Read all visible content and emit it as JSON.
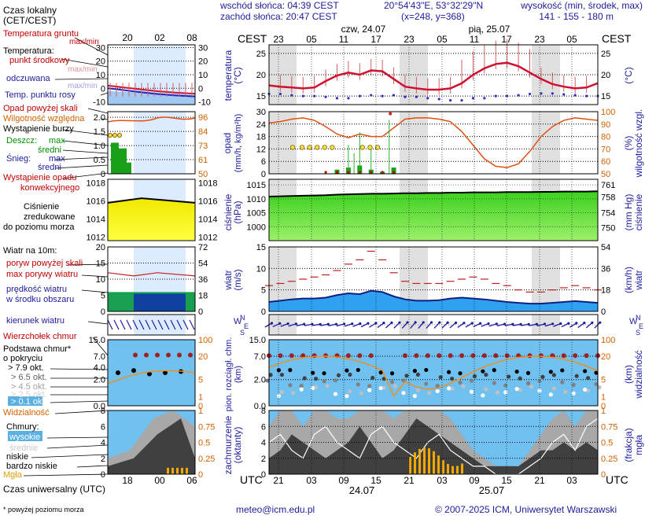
{
  "header": {
    "sunrise": "wschód słońca: 04:39 CEST",
    "sunset": "zachód słońca: 20:47 CEST",
    "coords": "20°54'43\"E, 53°32'29\"N",
    "grid": "(x=248,  y=368)",
    "altitude_label": "wysokość (min, środek, max)",
    "altitude_values": "141 - 155 - 180 m",
    "day1": "czw, 24.07",
    "day2": "pią, 25.07",
    "cest": "CEST",
    "top_hours": [
      "23",
      "05",
      "11",
      "17",
      "23",
      "05",
      "11",
      "17",
      "23",
      "05"
    ],
    "bottom_hours": [
      "21",
      "03",
      "09",
      "15",
      "21",
      "03",
      "09",
      "15",
      "21",
      "03"
    ],
    "bottom_date1": "24.07",
    "bottom_date2": "25.07",
    "utc": "UTC"
  },
  "legend": {
    "local_time": "Czas lokalny",
    "local_time2": "(CET/CEST)",
    "local_hours": [
      "20",
      "02",
      "08"
    ],
    "utc_hours": [
      "18",
      "00",
      "06"
    ],
    "utc_label": "Czas uniwersalny (UTC)",
    "temp_ground": "Temperatura gruntu",
    "temp_ground_sub": "max/min",
    "temperature": "Temperatura:",
    "mid_point": "punkt środkowy",
    "max_min": "max/min",
    "perceived": "odczuwana",
    "max_min2": "max/min",
    "dew_point": "Temp. punktu rosy",
    "rain_over_scale": "Opad powyżej skali",
    "humidity": "Wilgotność względna",
    "storm": "Wystąpienie burzy",
    "rain": "Deszcz:",
    "max": "max",
    "mid": "średni",
    "snow": "Śnieg:",
    "max2": "max",
    "mid2": "średni",
    "conv": "Wystąpienie opadu",
    "conv2": "konwekcyjnego",
    "pressure1": "Ciśnienie",
    "pressure2": "zredukowane",
    "pressure3": "do poziomu morza",
    "wind10": "Wiatr na 10m:",
    "gust_over": "poryw powyżej skali",
    "gust_max": "max porywy wiatru",
    "wind_speed": "prędkość wiatru",
    "wind_area": "w środku obszaru",
    "wind_dir": "kierunek wiatru",
    "cb_top": "Wierzchołek chmur",
    "cloud_base": "Podstawa chmur*",
    "cloud_base2": "o pokryciu",
    "okt79": "> 7.9 okt.",
    "okt65": "> 6.5 okt.",
    "okt45": "> 4.5 okt.",
    "okt25": "> 2.5 okt.",
    "okt01": "> 0.1 okt.",
    "visibility": "Widzialność",
    "clouds": "Chmury:",
    "high": "wysokie",
    "middle": "średnie",
    "low": "niskie",
    "very_low": "bardzo niskie",
    "fog": "Mgła",
    "footnote": "* powyżej poziomu morza"
  },
  "axes": {
    "temperature": "temperatura",
    "temperature_unit": "(°C)",
    "rain": "opad",
    "rain_unit": "(mm/h, kg/m²h)",
    "humidity": "wilgotność wzgl.",
    "humidity_unit": "(%)",
    "pressure": "ciśnienie",
    "pressure_unit": "(hPa)",
    "pressure_unit2": "(mm Hg)",
    "wind": "wiatr",
    "wind_unit": "(m/s)",
    "wind_unit2": "(km/h)",
    "cloud_left": "pion. rozciągł. chm.",
    "cloud_left_unit": "(km)",
    "vis": "widzialność",
    "vis_unit": "(km)",
    "cover": "zachmurzenie",
    "cover_unit": "(oktanty)",
    "fog": "mgła",
    "fog_unit": "(frakcja)",
    "compass_n": "N",
    "compass_w": "W",
    "compass_e": "E",
    "compass_s": "S"
  },
  "ticks": {
    "temp_left": [
      "25",
      "20",
      "15"
    ],
    "temp_right": [
      "25",
      "20",
      "15"
    ],
    "rain_left": [
      "30",
      "25",
      "20",
      "15",
      "10",
      "5",
      "0"
    ],
    "rain_left_vals": [
      "30",
      "24",
      "18",
      "12",
      "6",
      "0"
    ],
    "hum_right": [
      "100",
      "90",
      "80",
      "70",
      "60",
      "50"
    ],
    "pres_left": [
      "1015",
      "1010",
      "1005",
      "1000"
    ],
    "pres_right": [
      "761",
      "758",
      "754",
      "750"
    ],
    "wind_left": [
      "15",
      "10",
      "5",
      "0"
    ],
    "wind_right": [
      "54",
      "36",
      "18",
      "0"
    ],
    "cloud_left": [
      "15.0",
      "7.0",
      "2.0",
      "0.0"
    ],
    "vis_right": [
      "100",
      "20",
      "5",
      "1",
      "0"
    ],
    "cover_left": [
      "8",
      "6",
      "4",
      "2",
      "0"
    ],
    "fog_right": [
      "1",
      "0.75",
      "0.5",
      "0.25",
      "0"
    ],
    "leg_temp_left": [
      "30",
      "20",
      "10",
      "0",
      "-10"
    ],
    "leg_temp_right": [
      "30",
      "20",
      "10",
      "0",
      "-10"
    ],
    "leg_rain_left": [
      "2.0",
      "1.5",
      "1.0",
      "0.5",
      "0"
    ],
    "leg_rain_right": [
      "96",
      "84",
      "73",
      "61",
      "50"
    ],
    "leg_pres_left": [
      "1018",
      "1016",
      "1014",
      "1012"
    ],
    "leg_pres_right": [
      "1018",
      "1016",
      "1014",
      "1012"
    ],
    "leg_wind_left": [
      "20",
      "15",
      "10",
      "5",
      "0"
    ],
    "leg_wind_right": [
      "72",
      "54",
      "36",
      "18",
      "0"
    ],
    "leg_cloud_left": [
      "15.0",
      "7.0",
      "4.0",
      "2.0",
      "0.0"
    ],
    "leg_cloud_right": [
      "100",
      "20",
      "5",
      "1",
      "0"
    ],
    "leg_cover_left": [
      "8",
      "6",
      "4",
      "2",
      "0"
    ],
    "leg_cover_right": [
      "1",
      "0.75",
      "0.5",
      "0.25",
      "0"
    ]
  },
  "footer": {
    "email": "meteo@icm.edu.pl",
    "copyright": "© 2007-2025 ICM, Uniwersytet Warszawski"
  },
  "chart_data": [
    {
      "type": "line",
      "title": "temperatura",
      "ylabel": "(°C)",
      "ylim": [
        13,
        30
      ],
      "series": [
        {
          "name": "punkt środkowy",
          "values": [
            17.5,
            17.2,
            17.0,
            16.8,
            17.0,
            18.5,
            19.8,
            20.5,
            20.0,
            21.0,
            20.8,
            19.0,
            17.2,
            16.8,
            16.5,
            16.5,
            16.8,
            18.0,
            20.0,
            21.5,
            22.5,
            22.8,
            22.0,
            20.5,
            19.0,
            17.8,
            17.2,
            16.8,
            17.0,
            18.0
          ]
        },
        {
          "name": "Temp. punktu rosy",
          "values": [
            15.5,
            15.5,
            15.2,
            15.0,
            15.0,
            14.8,
            14.5,
            14.5,
            15.0,
            15.2,
            15.0,
            15.2,
            14.8,
            14.8,
            14.5,
            14.3,
            14.0,
            14.0,
            14.5,
            14.5,
            15.0,
            15.0,
            15.2,
            15.5,
            15.6,
            15.6,
            15.4,
            15.2,
            15.0,
            15.0
          ]
        }
      ]
    },
    {
      "type": "line",
      "title": "wilgotność wzgl.",
      "ylabel": "(%)",
      "ylim": [
        50,
        100
      ],
      "series": [
        {
          "name": "Wilgotność względna",
          "values": [
            91,
            92,
            94,
            95,
            93,
            88,
            82,
            79,
            82,
            80,
            80,
            87,
            94,
            95,
            95,
            94,
            92,
            84,
            73,
            62,
            56,
            55,
            58,
            68,
            80,
            88,
            93,
            95,
            94,
            93
          ]
        }
      ]
    },
    {
      "type": "area",
      "title": "ciśnienie",
      "ylabel": "(hPa)",
      "ylim": [
        995,
        1015
      ],
      "series": [
        {
          "name": "Ciśnienie zredukowane do poziomu morza",
          "values": [
            1010.8,
            1010.9,
            1011.0,
            1011.1,
            1011.2,
            1011.3,
            1011.5,
            1011.6,
            1011.7,
            1011.8,
            1011.8,
            1011.9,
            1012.0,
            1012.0,
            1012.1,
            1012.1,
            1012.2,
            1012.2,
            1012.3,
            1012.3,
            1012.3,
            1012.4,
            1012.4,
            1012.4,
            1012.5,
            1012.5,
            1012.6,
            1012.6,
            1012.6,
            1012.7
          ]
        }
      ]
    },
    {
      "type": "area",
      "title": "wiatr",
      "ylabel": "(m/s)",
      "ylim": [
        0,
        15
      ],
      "series": [
        {
          "name": "prędkość wiatru",
          "values": [
            2.2,
            2.5,
            2.8,
            3.0,
            3.0,
            3.2,
            3.8,
            4.2,
            4.0,
            4.8,
            4.5,
            3.5,
            2.8,
            2.5,
            2.5,
            2.6,
            3.0,
            3.2,
            3.0,
            2.8,
            2.5,
            2.2,
            2.0,
            1.8,
            1.8,
            2.0,
            2.2,
            2.4,
            2.2,
            2.0
          ]
        },
        {
          "name": "max porywy wiatru",
          "values": [
            6,
            6.5,
            7,
            7.5,
            8,
            8.5,
            9.5,
            11,
            12,
            14,
            12,
            9,
            7,
            6.5,
            6.5,
            6.5,
            7,
            7.5,
            8,
            7.5,
            6.5,
            6,
            5,
            4.5,
            4.5,
            5,
            5.5,
            6,
            5.5,
            5
          ]
        }
      ]
    },
    {
      "type": "area",
      "title": "zachmurzenie",
      "ylabel": "(oktanty)",
      "ylim": [
        0,
        8
      ],
      "series": [
        {
          "name": "niskie",
          "values": [
            2,
            3,
            5,
            4,
            3,
            2,
            3,
            4,
            6,
            4,
            2,
            3,
            5,
            7,
            6,
            5,
            4,
            3,
            2,
            1,
            1,
            1,
            1,
            2,
            3,
            3,
            4,
            3,
            4,
            3
          ]
        },
        {
          "name": "wysokie",
          "values": [
            4,
            5,
            3,
            2,
            5,
            6,
            4,
            3,
            2,
            5,
            6,
            4,
            3,
            2,
            4,
            5,
            3,
            2,
            1,
            1,
            0,
            0,
            0,
            1,
            2,
            4,
            5,
            3,
            6,
            7
          ]
        }
      ]
    }
  ]
}
